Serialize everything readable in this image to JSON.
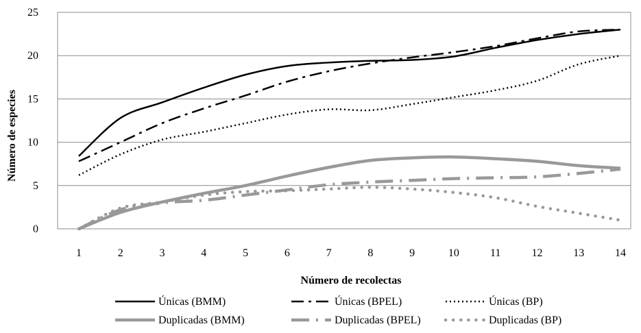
{
  "chart_data": {
    "type": "line",
    "title": "",
    "xlabel": "Número de recolectas",
    "ylabel": "Número de especies",
    "x": [
      1,
      2,
      3,
      4,
      5,
      6,
      7,
      8,
      9,
      10,
      11,
      12,
      13,
      14
    ],
    "ylim": [
      0,
      25
    ],
    "yticks": [
      0,
      5,
      10,
      15,
      20,
      25
    ],
    "grid": "horizontal",
    "legend_position": "bottom",
    "series": [
      {
        "name": "Únicas (BMM)",
        "color": "#000000",
        "style": "solid",
        "values": [
          8.4,
          12.8,
          14.6,
          16.3,
          17.8,
          18.8,
          19.2,
          19.4,
          19.5,
          19.9,
          20.9,
          21.8,
          22.5,
          23.0
        ]
      },
      {
        "name": "Únicas (BPEL)",
        "color": "#000000",
        "style": "dashdot",
        "values": [
          7.8,
          10.0,
          12.2,
          13.9,
          15.4,
          17.0,
          18.2,
          19.1,
          19.8,
          20.4,
          21.1,
          22.0,
          22.8,
          23.0
        ]
      },
      {
        "name": "Únicas (BP)",
        "color": "#000000",
        "style": "dotted",
        "values": [
          6.2,
          8.6,
          10.3,
          11.2,
          12.2,
          13.2,
          13.8,
          13.7,
          14.4,
          15.2,
          16.0,
          17.1,
          19.0,
          20.0
        ]
      },
      {
        "name": "Duplicadas (BMM)",
        "color": "#999999",
        "style": "solid",
        "values": [
          0.0,
          1.9,
          3.1,
          4.1,
          5.0,
          6.1,
          7.1,
          7.9,
          8.2,
          8.3,
          8.1,
          7.8,
          7.3,
          7.0
        ]
      },
      {
        "name": "Duplicadas (BPEL)",
        "color": "#999999",
        "style": "dashdot",
        "values": [
          0.0,
          2.2,
          3.0,
          3.3,
          3.9,
          4.5,
          5.1,
          5.4,
          5.6,
          5.8,
          5.9,
          6.0,
          6.4,
          6.9
        ]
      },
      {
        "name": "Duplicadas (BP)",
        "color": "#999999",
        "style": "dotted",
        "values": [
          0.0,
          2.4,
          3.1,
          3.9,
          4.3,
          4.4,
          4.6,
          4.8,
          4.6,
          4.2,
          3.6,
          2.6,
          1.8,
          1.0
        ]
      }
    ]
  }
}
